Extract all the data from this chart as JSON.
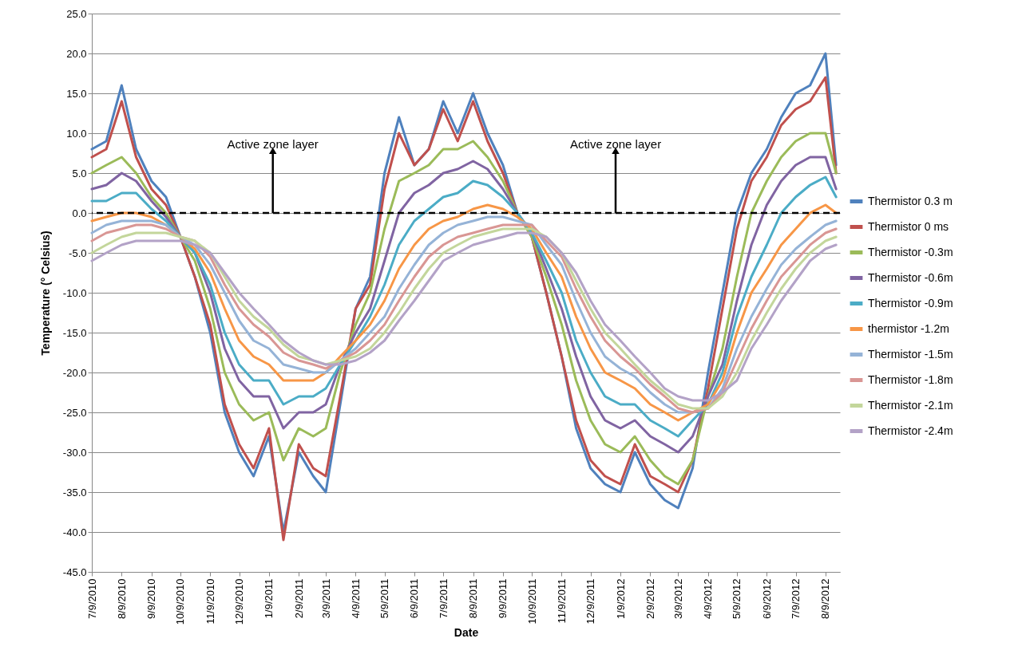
{
  "chart_data": {
    "type": "line",
    "xlabel": "Date",
    "ylabel": "Temperature (° Celsius)",
    "legend": "right",
    "grid": "y",
    "x": [
      "2010-07-09",
      "2010-07-24",
      "2010-08-09",
      "2010-08-24",
      "2010-09-09",
      "2010-09-24",
      "2010-10-09",
      "2010-10-24",
      "2010-11-09",
      "2010-11-24",
      "2010-12-09",
      "2010-12-24",
      "2011-01-09",
      "2011-01-24",
      "2011-02-09",
      "2011-02-24",
      "2011-03-09",
      "2011-03-24",
      "2011-04-09",
      "2011-04-24",
      "2011-05-09",
      "2011-05-24",
      "2011-06-09",
      "2011-06-24",
      "2011-07-09",
      "2011-07-24",
      "2011-08-09",
      "2011-08-24",
      "2011-09-09",
      "2011-09-24",
      "2011-10-09",
      "2011-10-24",
      "2011-11-09",
      "2011-11-24",
      "2011-12-09",
      "2011-12-24",
      "2012-01-09",
      "2012-01-24",
      "2012-02-09",
      "2012-02-24",
      "2012-03-09",
      "2012-03-24",
      "2012-04-09",
      "2012-04-24",
      "2012-05-09",
      "2012-05-24",
      "2012-06-09",
      "2012-06-24",
      "2012-07-09",
      "2012-07-24",
      "2012-08-09",
      "2012-08-20"
    ],
    "xlim": [
      "2010-07-09",
      "2012-08-24"
    ],
    "xticks": [
      {
        "value": "2010-07-09",
        "label": "7/9/2010"
      },
      {
        "value": "2010-08-09",
        "label": "8/9/2010"
      },
      {
        "value": "2010-09-09",
        "label": "9/9/2010"
      },
      {
        "value": "2010-10-09",
        "label": "10/9/2010"
      },
      {
        "value": "2010-11-09",
        "label": "11/9/2010"
      },
      {
        "value": "2010-12-09",
        "label": "12/9/2010"
      },
      {
        "value": "2011-01-09",
        "label": "1/9/2011"
      },
      {
        "value": "2011-02-09",
        "label": "2/9/2011"
      },
      {
        "value": "2011-03-09",
        "label": "3/9/2011"
      },
      {
        "value": "2011-04-09",
        "label": "4/9/2011"
      },
      {
        "value": "2011-05-09",
        "label": "5/9/2011"
      },
      {
        "value": "2011-06-09",
        "label": "6/9/2011"
      },
      {
        "value": "2011-07-09",
        "label": "7/9/2011"
      },
      {
        "value": "2011-08-09",
        "label": "8/9/2011"
      },
      {
        "value": "2011-09-09",
        "label": "9/9/2011"
      },
      {
        "value": "2011-10-09",
        "label": "10/9/2011"
      },
      {
        "value": "2011-11-09",
        "label": "11/9/2011"
      },
      {
        "value": "2011-12-09",
        "label": "12/9/2011"
      },
      {
        "value": "2012-01-09",
        "label": "1/9/2012"
      },
      {
        "value": "2012-02-09",
        "label": "2/9/2012"
      },
      {
        "value": "2012-03-09",
        "label": "3/9/2012"
      },
      {
        "value": "2012-04-09",
        "label": "4/9/2012"
      },
      {
        "value": "2012-05-09",
        "label": "5/9/2012"
      },
      {
        "value": "2012-06-09",
        "label": "6/9/2012"
      },
      {
        "value": "2012-07-09",
        "label": "7/9/2012"
      },
      {
        "value": "2012-08-09",
        "label": "8/9/2012"
      }
    ],
    "ylim": [
      -45,
      25
    ],
    "yticks": [
      {
        "value": -45,
        "label": "-45.0"
      },
      {
        "value": -40,
        "label": "-40.0"
      },
      {
        "value": -35,
        "label": "-35.0"
      },
      {
        "value": -30,
        "label": "-30.0"
      },
      {
        "value": -25,
        "label": "-25.0"
      },
      {
        "value": -20,
        "label": "-20.0"
      },
      {
        "value": -15,
        "label": "-15.0"
      },
      {
        "value": -10,
        "label": "-10.0"
      },
      {
        "value": -5,
        "label": "-5.0"
      },
      {
        "value": 0,
        "label": "0.0"
      },
      {
        "value": 5,
        "label": "5.0"
      },
      {
        "value": 10,
        "label": "10.0"
      },
      {
        "value": 15,
        "label": "15.0"
      },
      {
        "value": 20,
        "label": "20.0"
      },
      {
        "value": 25,
        "label": "25.0"
      }
    ],
    "series": [
      {
        "name": "Thermistor 0.3 m",
        "color": "#4f81bd",
        "values": [
          8,
          9,
          16,
          8,
          4,
          2,
          -3,
          -8,
          -15,
          -25,
          -30,
          -33,
          -28,
          -40,
          -30,
          -33,
          -35,
          -24,
          -12,
          -8,
          5,
          12,
          6,
          8,
          14,
          10,
          15,
          10,
          6,
          0,
          -3,
          -10,
          -18,
          -27,
          -32,
          -34,
          -35,
          -30,
          -34,
          -36,
          -37,
          -32,
          -20,
          -10,
          0,
          5,
          8,
          12,
          15,
          16,
          20,
          6
        ]
      },
      {
        "name": "Thermistor 0 ms",
        "color": "#c0504d",
        "values": [
          7,
          8,
          14,
          7,
          3,
          1,
          -3,
          -8,
          -14,
          -24,
          -29,
          -32,
          -27,
          -41,
          -29,
          -32,
          -33,
          -23,
          -12,
          -9,
          3,
          10,
          6,
          8,
          13,
          9,
          14,
          9,
          5,
          0,
          -3,
          -10,
          -18,
          -26,
          -31,
          -33,
          -34,
          -29,
          -33,
          -34,
          -35,
          -31,
          -22,
          -12,
          -2,
          4,
          7,
          11,
          13,
          14,
          17,
          5
        ]
      },
      {
        "name": "Thermistor -0.3m",
        "color": "#9bbb59",
        "values": [
          5,
          6,
          7,
          5,
          2,
          0,
          -3,
          -6,
          -12,
          -20,
          -24,
          -26,
          -25,
          -31,
          -27,
          -28,
          -27,
          -20,
          -14,
          -10,
          -2,
          4,
          5,
          6,
          8,
          8,
          9,
          7,
          4,
          0,
          -3,
          -8,
          -14,
          -21,
          -26,
          -29,
          -30,
          -28,
          -31,
          -33,
          -34,
          -31,
          -23,
          -17,
          -8,
          0,
          4,
          7,
          9,
          10,
          10,
          5
        ]
      },
      {
        "name": "Thermistor -0.6m",
        "color": "#8064a2",
        "values": [
          3,
          3.5,
          5,
          4,
          1.5,
          -0.5,
          -3,
          -5,
          -10,
          -17,
          -21,
          -23,
          -23,
          -27,
          -25,
          -25,
          -24,
          -19,
          -15,
          -12,
          -6,
          0,
          2.5,
          3.5,
          5,
          5.5,
          6.5,
          5.5,
          3,
          0,
          -2.5,
          -7,
          -12,
          -18,
          -23,
          -26,
          -27,
          -26,
          -28,
          -29,
          -30,
          -28,
          -23,
          -19,
          -11,
          -4,
          1,
          4,
          6,
          7,
          7,
          3
        ]
      },
      {
        "name": "Thermistor -0.9m",
        "color": "#4bacc6",
        "values": [
          1.5,
          1.5,
          2.5,
          2.5,
          0.5,
          -1,
          -3,
          -5,
          -9,
          -15,
          -19,
          -21,
          -21,
          -24,
          -23,
          -23,
          -22,
          -19,
          -16,
          -13,
          -9,
          -4,
          -1,
          0.5,
          2,
          2.5,
          4,
          3.5,
          2,
          0,
          -2.5,
          -6,
          -10,
          -16,
          -20,
          -23,
          -24,
          -24,
          -26,
          -27,
          -28,
          -26,
          -24,
          -20,
          -13,
          -8,
          -4,
          0,
          2,
          3.5,
          4.5,
          2
        ]
      },
      {
        "name": "thermistor -1.2m",
        "color": "#f79646",
        "values": [
          -1,
          -0.5,
          0,
          0,
          -0.5,
          -1.5,
          -3,
          -4.5,
          -7.5,
          -12,
          -16,
          -18,
          -19,
          -21,
          -21,
          -21,
          -20,
          -18,
          -16,
          -14,
          -11,
          -7,
          -4,
          -2,
          -1,
          -0.5,
          0.5,
          1,
          0.5,
          -0.5,
          -2,
          -5,
          -8,
          -13,
          -17,
          -20,
          -21,
          -22,
          -24,
          -25,
          -26,
          -25,
          -24,
          -21,
          -15,
          -10,
          -7,
          -4,
          -2,
          0,
          1,
          0
        ]
      },
      {
        "name": "Thermistor -1.5m",
        "color": "#95b3d7",
        "values": [
          -2.5,
          -1.5,
          -1,
          -1,
          -1,
          -1.5,
          -3,
          -4,
          -6.5,
          -10,
          -13.5,
          -16,
          -17,
          -19,
          -19.5,
          -20,
          -20,
          -18.5,
          -17,
          -15,
          -13,
          -9.5,
          -6.5,
          -4,
          -2.5,
          -1.5,
          -1,
          -0.5,
          -0.5,
          -1,
          -1.5,
          -4,
          -6.5,
          -11,
          -15,
          -18,
          -19.5,
          -20.5,
          -22.5,
          -24,
          -25,
          -25,
          -24.5,
          -22,
          -17,
          -13,
          -9.5,
          -6.5,
          -4.5,
          -3,
          -1.5,
          -1
        ]
      },
      {
        "name": "Thermistor -1.8m",
        "color": "#d99694",
        "values": [
          -3.5,
          -2.5,
          -2,
          -1.5,
          -1.5,
          -2,
          -3,
          -3.5,
          -5.5,
          -9,
          -12,
          -14,
          -15.5,
          -17.5,
          -18.5,
          -19,
          -19.5,
          -18.5,
          -17.5,
          -16,
          -14,
          -11,
          -8,
          -5.5,
          -4,
          -3,
          -2.5,
          -2,
          -1.5,
          -1.5,
          -1.5,
          -3.5,
          -5.5,
          -9.5,
          -13,
          -16,
          -18,
          -19.5,
          -21.5,
          -23,
          -24.5,
          -25,
          -24.5,
          -22.5,
          -18.5,
          -14.5,
          -11,
          -8,
          -6,
          -4,
          -2.5,
          -2
        ]
      },
      {
        "name": "Thermistor -2.1m",
        "color": "#c3d69b",
        "values": [
          -5,
          -4,
          -3,
          -2.5,
          -2.5,
          -2.5,
          -3,
          -3.5,
          -5,
          -8,
          -11,
          -13,
          -14.5,
          -16.5,
          -18,
          -18.5,
          -19,
          -18.5,
          -18,
          -17,
          -15,
          -12.5,
          -9.5,
          -7,
          -5,
          -4,
          -3,
          -2.5,
          -2,
          -2,
          -2,
          -3,
          -5,
          -8.5,
          -12,
          -15,
          -17,
          -19,
          -21,
          -22.5,
          -24,
          -24.5,
          -24.5,
          -23,
          -20,
          -16,
          -12.5,
          -9.5,
          -7,
          -5,
          -3.5,
          -3
        ]
      },
      {
        "name": "Thermistor -2.4m",
        "color": "#b3a2c7",
        "values": [
          -6,
          -5,
          -4,
          -3.5,
          -3.5,
          -3.5,
          -3.5,
          -4,
          -5,
          -7.5,
          -10,
          -12,
          -14,
          -16,
          -17.5,
          -18.5,
          -19,
          -19,
          -18.5,
          -17.5,
          -16,
          -13.5,
          -11,
          -8.5,
          -6,
          -5,
          -4,
          -3.5,
          -3,
          -2.5,
          -2.5,
          -3,
          -5,
          -7.5,
          -11,
          -14,
          -16,
          -18,
          -20,
          -22,
          -23,
          -23.5,
          -23.5,
          -22.5,
          -21,
          -17,
          -14,
          -11,
          -8.5,
          -6,
          -4.5,
          -4
        ]
      }
    ],
    "ref_lines": [
      {
        "axis": "y",
        "value": 0,
        "label": null,
        "color": "#000000",
        "line_style": "dashed"
      }
    ],
    "annotations": [
      {
        "text": "Active zone layer",
        "x": "2011-01-13",
        "y": 7.8
      },
      {
        "text": "Active zone layer",
        "x": "2012-01-04",
        "y": 7.8
      }
    ]
  }
}
